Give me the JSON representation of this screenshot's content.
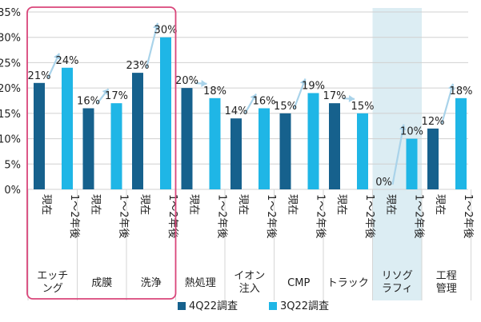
{
  "chart_data": {
    "type": "bar",
    "title": "",
    "ylim": [
      0,
      35
    ],
    "yticks": [
      "0%",
      "5%",
      "10%",
      "15%",
      "20%",
      "25%",
      "30%",
      "35%"
    ],
    "categories": [
      "エッチング",
      "成膜",
      "洗浄",
      "熱処理",
      "イオン注入",
      "CMP",
      "トラック",
      "リソグラフィ",
      "工程管理"
    ],
    "category_lines": [
      [
        "エッチ",
        "ング"
      ],
      [
        "成膜"
      ],
      [
        "洗浄"
      ],
      [
        "熱処理"
      ],
      [
        "イオン",
        "注入"
      ],
      [
        "CMP"
      ],
      [
        "トラック"
      ],
      [
        "リソグ",
        "ラフィ"
      ],
      [
        "工程",
        "管理"
      ]
    ],
    "bar_labels": {
      "current": "現在",
      "future": "1〜2年後"
    },
    "series": [
      {
        "name": "4Q22調査",
        "key": "current",
        "color": "#16618d",
        "values": [
          21,
          16,
          23,
          20,
          14,
          15,
          17,
          0,
          12
        ],
        "labels": [
          "21%",
          "16%",
          "23%",
          "20%",
          "14%",
          "15%",
          "17%",
          "0%",
          "12%"
        ]
      },
      {
        "name": "3Q22調査",
        "key": "future",
        "color": "#1fb6e6",
        "values": [
          24,
          17,
          30,
          18,
          16,
          19,
          15,
          10,
          18
        ],
        "labels": [
          "24%",
          "17%",
          "30%",
          "18%",
          "16%",
          "19%",
          "15%",
          "10%",
          "18%"
        ]
      }
    ],
    "legend": {
      "position": "bottom"
    },
    "highlights": {
      "boxed_categories": [
        "エッチング",
        "成膜",
        "洗浄"
      ],
      "shaded_category": "リソグラフィ"
    },
    "colors": {
      "arrow": "#a9d3ea",
      "box": "#d9467a",
      "shade": "#dcedf3",
      "grid": "#d0d0d0",
      "text": "#222222"
    }
  }
}
